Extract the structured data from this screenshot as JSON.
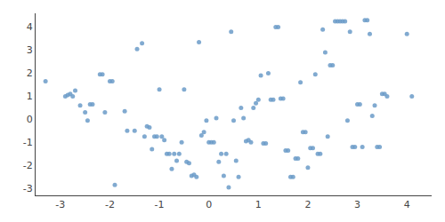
{
  "chart_data": {
    "type": "scatter",
    "x": [
      -3.3,
      -2.9,
      -2.85,
      -2.8,
      -2.75,
      -2.7,
      -2.6,
      -2.5,
      -2.45,
      -2.4,
      -2.35,
      -2.2,
      -2.15,
      -2.1,
      -2.0,
      -1.95,
      -1.9,
      -1.7,
      -1.65,
      -1.5,
      -1.45,
      -1.35,
      -1.3,
      -1.25,
      -1.2,
      -1.15,
      -1.1,
      -1.05,
      -1.0,
      -0.95,
      -0.9,
      -0.85,
      -0.8,
      -0.75,
      -0.7,
      -0.65,
      -0.6,
      -0.55,
      -0.5,
      -0.45,
      -0.4,
      -0.35,
      -0.3,
      -0.25,
      -0.2,
      -0.15,
      -0.1,
      -0.05,
      0.0,
      0.05,
      0.1,
      0.15,
      0.2,
      0.25,
      0.3,
      0.35,
      0.4,
      0.45,
      0.5,
      0.55,
      0.6,
      0.65,
      0.7,
      0.75,
      0.8,
      0.85,
      0.9,
      0.95,
      1.0,
      1.05,
      1.1,
      1.15,
      1.2,
      1.25,
      1.3,
      1.35,
      1.4,
      1.45,
      1.5,
      1.55,
      1.6,
      1.65,
      1.7,
      1.75,
      1.8,
      1.85,
      1.9,
      1.95,
      2.0,
      2.05,
      2.1,
      2.15,
      2.2,
      2.25,
      2.3,
      2.35,
      2.4,
      2.45,
      2.5,
      2.55,
      2.6,
      2.65,
      2.7,
      2.75,
      2.8,
      2.85,
      2.9,
      2.95,
      3.0,
      3.05,
      3.1,
      3.15,
      3.2,
      3.25,
      3.3,
      3.35,
      3.4,
      3.45,
      3.5,
      3.55,
      3.6,
      4.0,
      4.1
    ],
    "values": [
      1.65,
      1.0,
      1.05,
      1.1,
      1.0,
      1.25,
      0.6,
      0.3,
      -0.05,
      0.65,
      0.65,
      1.95,
      1.95,
      0.3,
      1.65,
      1.65,
      -2.85,
      0.35,
      -0.5,
      -0.5,
      3.05,
      3.3,
      -0.75,
      -0.3,
      -0.35,
      -1.3,
      -0.75,
      -0.75,
      1.3,
      -0.75,
      -0.9,
      -1.5,
      -1.5,
      -2.15,
      -1.5,
      -1.8,
      -1.5,
      -1.0,
      1.3,
      -1.85,
      -1.9,
      -2.45,
      -2.4,
      -2.5,
      3.35,
      -0.7,
      -0.55,
      -0.05,
      -1.0,
      -1.0,
      -1.0,
      0.05,
      -1.85,
      -1.5,
      -2.45,
      -1.5,
      -2.95,
      3.8,
      -0.05,
      -1.8,
      -2.5,
      0.5,
      0.05,
      -0.95,
      -0.9,
      -1.0,
      0.5,
      0.7,
      0.85,
      1.9,
      -1.05,
      -1.05,
      2.0,
      0.85,
      0.85,
      4.0,
      4.0,
      0.9,
      0.9,
      -1.35,
      -1.35,
      -2.5,
      -2.5,
      -1.7,
      -1.7,
      1.6,
      -0.55,
      -0.55,
      -2.1,
      -1.25,
      -1.25,
      1.95,
      -1.5,
      -1.5,
      3.9,
      2.9,
      -0.75,
      2.35,
      2.35,
      4.25,
      4.25,
      4.25,
      4.25,
      4.25,
      -0.05,
      3.8,
      -1.2,
      -1.2,
      0.65,
      0.65,
      -1.2,
      4.3,
      4.3,
      3.7,
      0.15,
      0.6,
      -1.2,
      -1.2,
      1.1,
      1.1,
      1.0,
      3.7,
      1.0
    ],
    "color": "#6b9bc8",
    "xlim": [
      -3.5,
      4.5
    ],
    "ylim": [
      -3.3,
      4.6
    ],
    "xticks": [
      -3,
      -2,
      -1,
      0,
      1,
      2,
      3,
      4
    ],
    "yticks": [
      -3,
      -2,
      -1,
      0,
      1,
      2,
      3,
      4
    ],
    "grid": false
  }
}
